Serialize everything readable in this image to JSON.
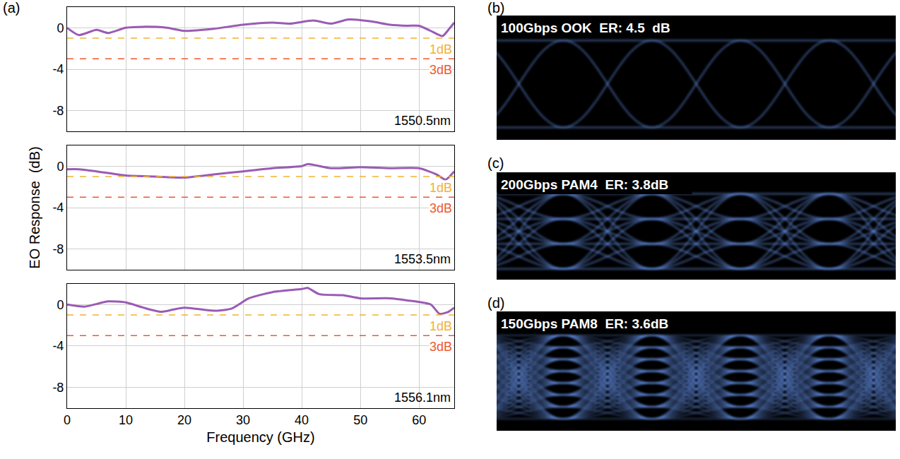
{
  "panel_labels": [
    "(a)",
    "(b)",
    "(c)",
    "(d)"
  ],
  "chart_data": [
    {
      "type": "line",
      "annotation": "1550.5nm",
      "series": [
        {
          "name": "1550.5nm",
          "color": "#9a5bb5",
          "x": [
            0,
            2,
            5,
            7,
            10,
            13,
            17,
            20,
            25,
            30,
            35,
            38,
            42,
            45,
            48,
            52,
            55,
            58,
            60,
            62,
            64,
            65,
            66
          ],
          "values": [
            0,
            -0.7,
            -0.2,
            -0.5,
            0,
            0.1,
            0,
            -0.3,
            -0.1,
            0.3,
            0.5,
            0.4,
            0.7,
            0.4,
            0.8,
            0.6,
            0.3,
            0.2,
            0.2,
            -0.3,
            -0.8,
            -0.2,
            0.5
          ]
        }
      ],
      "reference_lines": [
        {
          "value": -1,
          "label": "1dB",
          "color": "#f2b233",
          "line_style": "dash"
        },
        {
          "value": -3,
          "label": "3dB",
          "color": "#f0582a",
          "line_style": "dash"
        }
      ],
      "xlim": [
        0,
        66
      ],
      "xticks": [
        0,
        10,
        20,
        30,
        40,
        50,
        60
      ],
      "ylim": [
        -10,
        2
      ],
      "yticks": [
        0,
        -4,
        -8
      ],
      "grid": true,
      "tick_labels": "y"
    },
    {
      "type": "line",
      "annotation": "1553.5nm",
      "ylabel": "EO Response  (dB)",
      "series": [
        {
          "name": "1553.5nm",
          "color": "#9a5bb5",
          "x": [
            0,
            2,
            5,
            10,
            15,
            20,
            25,
            30,
            35,
            40,
            41,
            45,
            50,
            55,
            60,
            63,
            64.5,
            66
          ],
          "values": [
            -0.3,
            -0.3,
            -0.5,
            -0.9,
            -1.0,
            -1.1,
            -0.8,
            -0.5,
            -0.2,
            0,
            0.2,
            -0.2,
            -0.1,
            -0.2,
            -0.2,
            -0.8,
            -1.3,
            -0.5
          ]
        }
      ],
      "reference_lines": [
        {
          "value": -1,
          "label": "1dB",
          "color": "#f2b233",
          "line_style": "dash"
        },
        {
          "value": -3,
          "label": "3dB",
          "color": "#f0582a",
          "line_style": "dash"
        }
      ],
      "xlim": [
        0,
        66
      ],
      "xticks": [
        0,
        10,
        20,
        30,
        40,
        50,
        60
      ],
      "ylim": [
        -10,
        2
      ],
      "yticks": [
        0,
        -4,
        -8
      ],
      "grid": true,
      "tick_labels": "y"
    },
    {
      "type": "line",
      "annotation": "1556.1nm",
      "xlabel": "Frequency (GHz)",
      "series": [
        {
          "name": "1556.1nm",
          "color": "#9a5bb5",
          "x": [
            0,
            3,
            7,
            10,
            13,
            16,
            18,
            20,
            25,
            28,
            31,
            35,
            40,
            41,
            43,
            47,
            50,
            55,
            58,
            62,
            63.5,
            65,
            66
          ],
          "values": [
            0,
            -0.2,
            0.3,
            0.2,
            -0.3,
            -0.7,
            -0.5,
            -0.3,
            -0.6,
            -0.4,
            0.6,
            1.2,
            1.5,
            1.6,
            1.0,
            0.9,
            0.6,
            0.6,
            0.4,
            0,
            -0.9,
            -0.7,
            -0.3
          ]
        }
      ],
      "reference_lines": [
        {
          "value": -1,
          "label": "1dB",
          "color": "#f2b233",
          "line_style": "dash"
        },
        {
          "value": -3,
          "label": "3dB",
          "color": "#f0582a",
          "line_style": "dash"
        }
      ],
      "xlim": [
        0,
        66
      ],
      "xticks": [
        0,
        10,
        20,
        30,
        40,
        50,
        60
      ],
      "ylim": [
        -10,
        2
      ],
      "yticks": [
        0,
        -4,
        -8
      ],
      "grid": true
    }
  ],
  "eye_diagrams": [
    {
      "label": "100Gbps OOK  ER: 4.5  dB",
      "levels": 2
    },
    {
      "label": "200Gbps PAM4  ER: 3.8dB",
      "levels": 4
    },
    {
      "label": "150Gbps PAM8  ER: 3.6dB",
      "levels": 8
    }
  ]
}
